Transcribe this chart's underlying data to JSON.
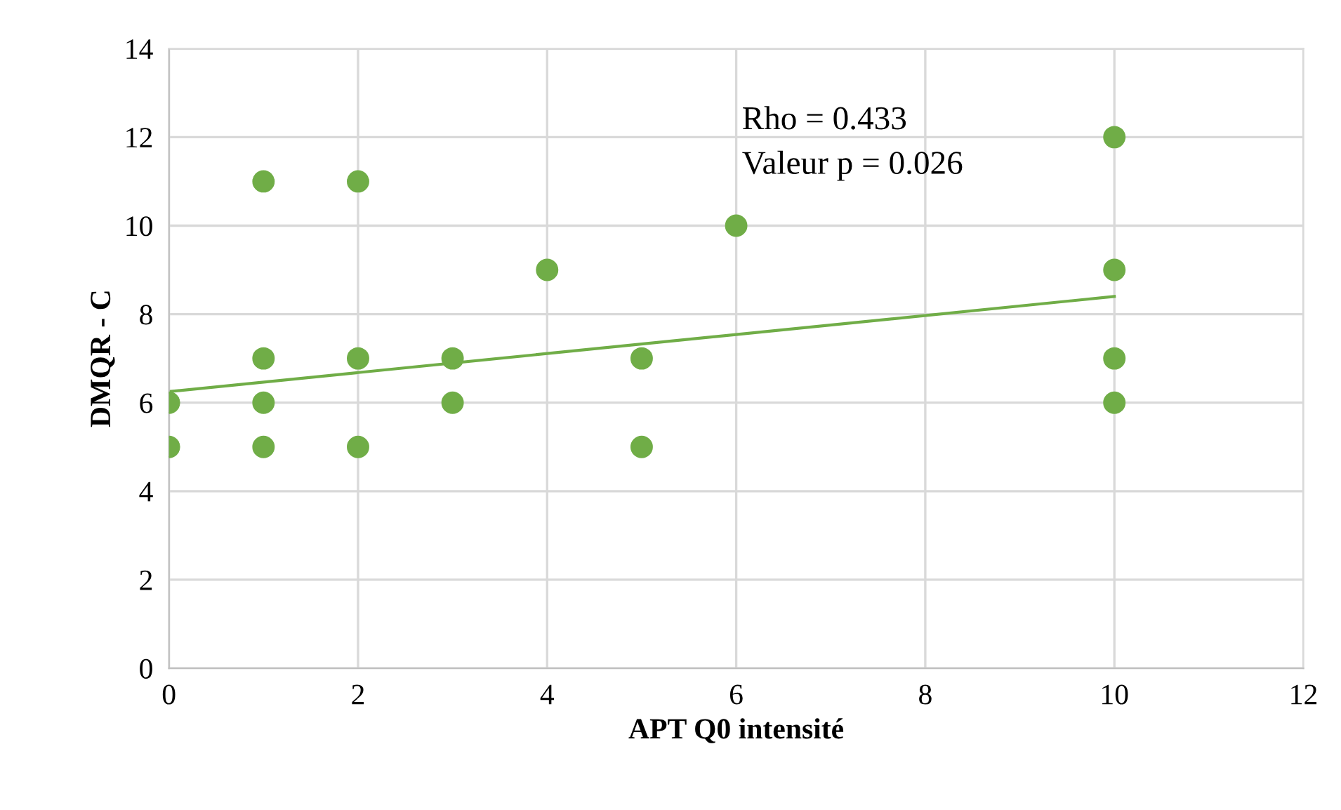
{
  "chart_data": {
    "type": "scatter",
    "xlabel": "APT Q0 intensité",
    "ylabel": "DMQR - C",
    "series": [
      {
        "color": "#70ad47",
        "marker": "circle",
        "x": [
          0,
          0,
          1,
          1,
          1,
          1,
          2,
          2,
          2,
          3,
          3,
          4,
          5,
          5,
          6,
          10,
          10,
          10,
          10
        ],
        "values": [
          6,
          5,
          11,
          7,
          6,
          5,
          11,
          7,
          5,
          7,
          6,
          9,
          7,
          5,
          10,
          12,
          9,
          7,
          6
        ]
      },
      {
        "type": "line",
        "color": "#70ad47",
        "marker": "none",
        "line_style": "solid",
        "x": [
          0,
          10
        ],
        "values": [
          6.25,
          8.4
        ]
      }
    ],
    "annotations": [
      "Rho = 0.433",
      "Valeur p = 0.026"
    ],
    "xlim": [
      0,
      12
    ],
    "xticks": [
      0,
      2,
      4,
      6,
      8,
      10,
      12
    ],
    "ylim": [
      0,
      14
    ],
    "yticks": [
      0,
      2,
      4,
      6,
      8,
      10,
      12,
      14
    ],
    "grid": true,
    "legend": false
  }
}
